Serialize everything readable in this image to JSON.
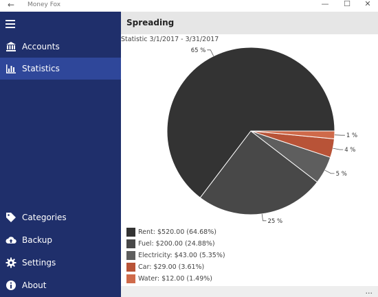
{
  "window": {
    "title": "Money Fox",
    "back_icon": "arrow-left-icon",
    "min_glyph": "—",
    "max_glyph": "☐",
    "close_glyph": "✕"
  },
  "sidebar": {
    "menu_icon": "hamburger-icon",
    "top_items": [
      {
        "label": "Accounts",
        "icon": "bank-icon",
        "active": false
      },
      {
        "label": "Statistics",
        "icon": "bar-chart-icon",
        "active": true
      }
    ],
    "bottom_items": [
      {
        "label": "Categories",
        "icon": "tag-icon"
      },
      {
        "label": "Backup",
        "icon": "cloud-upload-icon"
      },
      {
        "label": "Settings",
        "icon": "gear-icon"
      },
      {
        "label": "About",
        "icon": "info-icon"
      }
    ],
    "colors": {
      "background": "#1f2f6b",
      "active": "#2f479a"
    }
  },
  "page": {
    "title": "Spreading",
    "subtitle": "Statistic 3/1/2017 - 3/31/2017",
    "more_glyph": "..."
  },
  "chart_data": {
    "type": "pie",
    "categories": [
      "Rent",
      "Fuel",
      "Electricity",
      "Car",
      "Water"
    ],
    "values": [
      520.0,
      200.0,
      43.0,
      29.0,
      12.0
    ],
    "percent_labels": [
      "65 %",
      "25 %",
      "5 %",
      "4 %",
      "1 %"
    ],
    "colors": [
      "#333333",
      "#484848",
      "#5e5e5e",
      "#b85337",
      "#cf6a4a"
    ],
    "legend": [
      "Rent: $520.00 (64.68%)",
      "Fuel: $200.00 (24.88%)",
      "Electricity: $43.00 (5.35%)",
      "Car: $29.00 (3.61%)",
      "Water: $12.00 (1.49%)"
    ]
  }
}
